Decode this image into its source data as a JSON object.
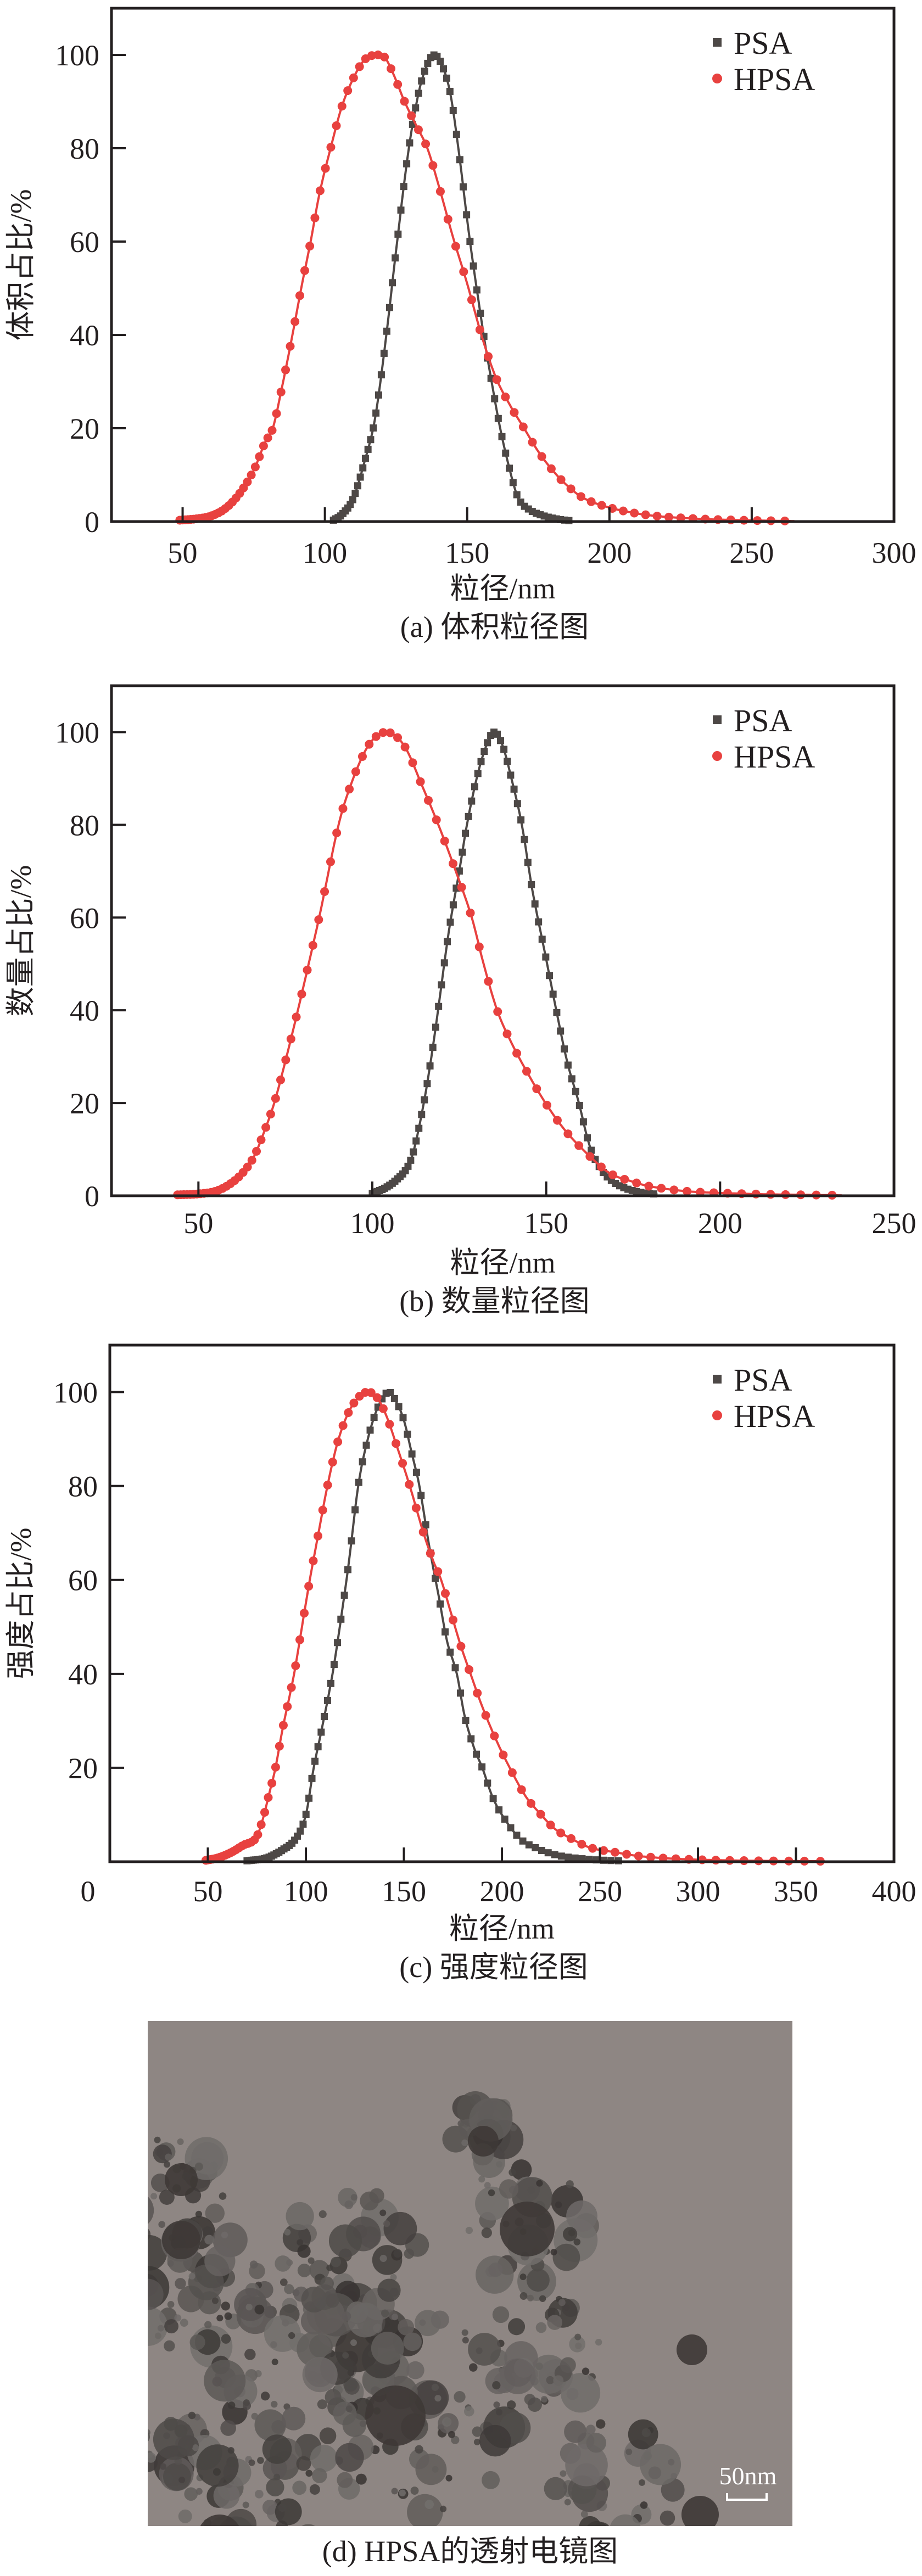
{
  "chart_data": [
    {
      "type": "line",
      "caption": "(a) 体积粒径图",
      "xlabel": "粒径/nm",
      "ylabel": "体积占比/%",
      "xlim": [
        25,
        300
      ],
      "ylim": [
        0,
        110
      ],
      "xticks": [
        50,
        100,
        150,
        200,
        250,
        300
      ],
      "yticks": [
        0,
        20,
        40,
        60,
        80,
        100
      ],
      "grid": false,
      "legend_position": "top-right",
      "series": [
        {
          "name": "PSA",
          "color": "#4d4846",
          "marker": "square",
          "marker_log_ratio": 1.008,
          "points": [
            [
              103,
              0.3
            ],
            [
              106,
              1.5
            ],
            [
              110,
              5
            ],
            [
              114,
              13
            ],
            [
              117.6,
              22
            ],
            [
              121.6,
              40
            ],
            [
              125,
              58
            ],
            [
              129.5,
              80
            ],
            [
              133,
              92
            ],
            [
              136,
              98
            ],
            [
              138.5,
              100
            ],
            [
              141,
              98
            ],
            [
              144,
              92
            ],
            [
              146.9,
              80
            ],
            [
              151,
              60
            ],
            [
              155.8,
              40
            ],
            [
              158,
              32
            ],
            [
              161.6,
              20
            ],
            [
              165,
              11
            ],
            [
              168,
              5
            ],
            [
              172,
              2.5
            ],
            [
              177,
              1.2
            ],
            [
              182,
              0.5
            ],
            [
              186,
              0.2
            ]
          ]
        },
        {
          "name": "HPSA",
          "color": "#e8413f",
          "marker": "circle",
          "marker_log_ratio": 1.019,
          "points": [
            [
              49,
              0.3
            ],
            [
              55,
              0.6
            ],
            [
              60,
              1.2
            ],
            [
              65,
              2.8
            ],
            [
              70,
              6
            ],
            [
              75,
              11
            ],
            [
              79,
              17
            ],
            [
              81.7,
              20
            ],
            [
              85,
              29
            ],
            [
              88.6,
              40
            ],
            [
              92,
              51
            ],
            [
              95,
              60
            ],
            [
              98,
              70
            ],
            [
              102,
              80
            ],
            [
              106,
              89
            ],
            [
              110,
              95
            ],
            [
              114,
              99
            ],
            [
              118,
              100
            ],
            [
              121,
              99.5
            ],
            [
              124,
              96
            ],
            [
              128,
              90
            ],
            [
              132,
              85
            ],
            [
              136,
              80
            ],
            [
              140,
              72
            ],
            [
              145,
              61
            ],
            [
              150,
              51
            ],
            [
              155,
              40
            ],
            [
              160,
              31
            ],
            [
              165,
              25
            ],
            [
              170,
              20
            ],
            [
              175,
              15
            ],
            [
              180,
              11
            ],
            [
              185,
              7.8
            ],
            [
              191,
              5
            ],
            [
              200,
              3
            ],
            [
              210,
              1.7
            ],
            [
              220,
              1
            ],
            [
              235,
              0.5
            ],
            [
              250,
              0.25
            ],
            [
              265,
              0.1
            ]
          ]
        }
      ]
    },
    {
      "type": "line",
      "caption": "(b) 数量粒径图",
      "xlabel": "粒径/nm",
      "ylabel": "数量占比/%",
      "xlim": [
        25,
        250
      ],
      "ylim": [
        0,
        110
      ],
      "xticks": [
        50,
        100,
        150,
        200,
        250
      ],
      "yticks": [
        0,
        20,
        40,
        60,
        80,
        100
      ],
      "grid": false,
      "legend_position": "top-right",
      "series": [
        {
          "name": "PSA",
          "color": "#4d4846",
          "marker": "square",
          "marker_log_ratio": 1.007,
          "points": [
            [
              100,
              0.5
            ],
            [
              104,
              1.8
            ],
            [
              107,
              3.5
            ],
            [
              110,
              6
            ],
            [
              112,
              10
            ],
            [
              114.8,
              20
            ],
            [
              117,
              30
            ],
            [
              118.9,
              40
            ],
            [
              122,
              57
            ],
            [
              125,
              70
            ],
            [
              127.2,
              80
            ],
            [
              130,
              90
            ],
            [
              132.5,
              96.5
            ],
            [
              135,
              100
            ],
            [
              137.5,
              97
            ],
            [
              140,
              90
            ],
            [
              143,
              80
            ],
            [
              146,
              66
            ],
            [
              150,
              51
            ],
            [
              152.9,
              40
            ],
            [
              156,
              29
            ],
            [
              159.4,
              20
            ],
            [
              162,
              12
            ],
            [
              164,
              8
            ],
            [
              167,
              4.5
            ],
            [
              171,
              2.2
            ],
            [
              176,
              0.9
            ],
            [
              182,
              0.3
            ]
          ]
        },
        {
          "name": "HPSA",
          "color": "#e8413f",
          "marker": "circle",
          "marker_log_ratio": 1.02,
          "points": [
            [
              44,
              0.2
            ],
            [
              50,
              0.4
            ],
            [
              55,
              1
            ],
            [
              59,
              2.5
            ],
            [
              62.8,
              5
            ],
            [
              66,
              8.5
            ],
            [
              69,
              14
            ],
            [
              71.8,
              20
            ],
            [
              75,
              29
            ],
            [
              78.6,
              40
            ],
            [
              82,
              51
            ],
            [
              85,
              61
            ],
            [
              90.3,
              80
            ],
            [
              94,
              89
            ],
            [
              98,
              96
            ],
            [
              101,
              99
            ],
            [
              104,
              100
            ],
            [
              107,
              99
            ],
            [
              110,
              96
            ],
            [
              114,
              89
            ],
            [
              119,
              80
            ],
            [
              124,
              70
            ],
            [
              128.6,
              60
            ],
            [
              132,
              50
            ],
            [
              135.9,
              40
            ],
            [
              140,
              33
            ],
            [
              145,
              26
            ],
            [
              149.8,
              20
            ],
            [
              155,
              14.5
            ],
            [
              160.5,
              10
            ],
            [
              168,
              5
            ],
            [
              175,
              3
            ],
            [
              180,
              2
            ],
            [
              190,
              1
            ],
            [
              200,
              0.6
            ],
            [
              215,
              0.3
            ],
            [
              235,
              0.1
            ]
          ]
        }
      ]
    },
    {
      "type": "line",
      "caption": "(c) 强度粒径图",
      "xlabel": "粒径/nm",
      "ylabel": "强度占比/%",
      "xlim": [
        0,
        400
      ],
      "ylim": [
        0,
        110
      ],
      "xticks": [
        0,
        50,
        100,
        150,
        200,
        250,
        300,
        350,
        400
      ],
      "yticks": [
        20,
        40,
        60,
        80,
        100
      ],
      "grid": false,
      "legend_position": "top-right",
      "series": [
        {
          "name": "PSA",
          "color": "#4d4846",
          "marker": "square",
          "marker_log_ratio": 1.015,
          "points": [
            [
              70,
              0.2
            ],
            [
              80,
              0.8
            ],
            [
              88,
              2.5
            ],
            [
              95,
              5
            ],
            [
              100,
              10
            ],
            [
              104,
              20
            ],
            [
              108,
              28
            ],
            [
              113.6,
              40
            ],
            [
              118,
              52
            ],
            [
              122,
              64
            ],
            [
              126.7,
              80
            ],
            [
              131,
              89
            ],
            [
              136,
              96
            ],
            [
              141.8,
              100
            ],
            [
              146,
              98
            ],
            [
              150,
              94
            ],
            [
              154,
              87
            ],
            [
              157.9,
              80
            ],
            [
              163,
              67
            ],
            [
              168,
              56
            ],
            [
              172,
              47
            ],
            [
              177,
              40
            ],
            [
              181,
              31
            ],
            [
              186,
              24
            ],
            [
              190,
              20
            ],
            [
              195,
              14
            ],
            [
              200,
              10
            ],
            [
              209,
              5
            ],
            [
              218,
              2.8
            ],
            [
              227,
              1.5
            ],
            [
              235,
              0.9
            ],
            [
              248,
              0.4
            ],
            [
              260,
              0.2
            ]
          ]
        },
        {
          "name": "HPSA",
          "color": "#e8413f",
          "marker": "circle",
          "marker_log_ratio": 1.023,
          "points": [
            [
              49,
              0.3
            ],
            [
              55,
              0.8
            ],
            [
              62,
              2
            ],
            [
              68,
              3.5
            ],
            [
              74.5,
              5
            ],
            [
              78,
              9
            ],
            [
              81,
              14
            ],
            [
              84.5,
              20
            ],
            [
              88,
              28
            ],
            [
              94,
              40
            ],
            [
              98,
              50
            ],
            [
              102,
              60
            ],
            [
              106,
              69
            ],
            [
              111,
              80
            ],
            [
              116,
              89
            ],
            [
              121,
              95
            ],
            [
              126,
              98.5
            ],
            [
              131,
              100
            ],
            [
              136,
              99
            ],
            [
              141,
              95
            ],
            [
              146,
              89
            ],
            [
              153,
              80
            ],
            [
              160,
              70
            ],
            [
              165,
              64
            ],
            [
              169,
              60
            ],
            [
              174,
              53
            ],
            [
              179,
              46
            ],
            [
              184,
              40
            ],
            [
              190,
              33
            ],
            [
              197,
              26
            ],
            [
              204,
              20
            ],
            [
              212,
              14
            ],
            [
              220,
              10
            ],
            [
              227,
              7
            ],
            [
              235,
              5
            ],
            [
              245,
              3
            ],
            [
              258,
              2
            ],
            [
              270,
              1.2
            ],
            [
              290,
              0.6
            ],
            [
              320,
              0.25
            ],
            [
              364,
              0.1
            ]
          ]
        }
      ]
    }
  ],
  "tem_image": {
    "caption": "(d) HPSA的透射电镜图",
    "scale_bar": "50nm"
  }
}
